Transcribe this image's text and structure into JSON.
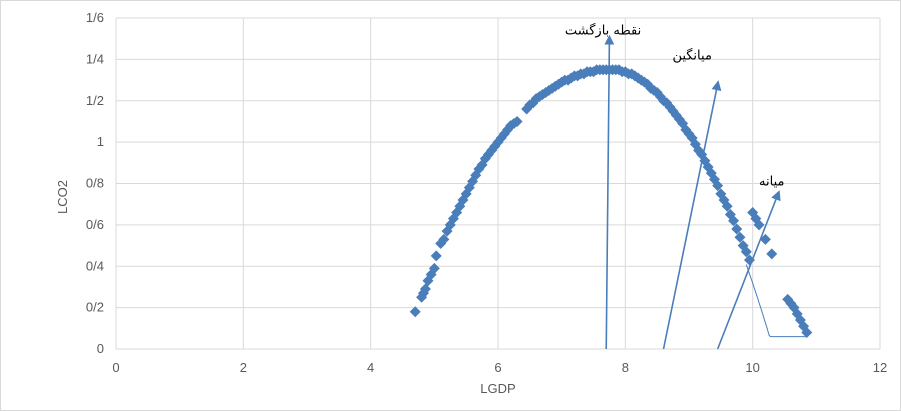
{
  "chart_data": {
    "type": "scatter",
    "title": "",
    "xlabel": "LGDP",
    "ylabel": "LCO2",
    "xlim": [
      0,
      12
    ],
    "ylim": [
      0,
      1.6
    ],
    "x_ticks": [
      0,
      2,
      4,
      6,
      8,
      10,
      12
    ],
    "y_ticks": [
      0,
      0.2,
      0.4,
      0.6,
      0.8,
      1,
      1.2,
      1.4,
      1.6
    ],
    "x_tick_labels": [
      "0",
      "2",
      "4",
      "6",
      "8",
      "10",
      "12"
    ],
    "y_tick_labels": [
      "0",
      "0/2",
      "0/4",
      "0/6",
      "0/8",
      "1",
      "1/2",
      "1/4",
      "1/6"
    ],
    "grid": true,
    "legend": "none",
    "series_color": "#4a7ebb",
    "curve": {
      "peak_x": 7.75,
      "peak_y": 1.35,
      "left_coefficient": 0.1313,
      "right_coefficient": 0.2038
    },
    "points": [
      {
        "x": 4.7,
        "y": 0.18
      },
      {
        "x": 4.8,
        "y": 0.25
      },
      {
        "x": 4.83,
        "y": 0.27
      },
      {
        "x": 4.86,
        "y": 0.29
      },
      {
        "x": 4.9,
        "y": 0.33
      },
      {
        "x": 4.95,
        "y": 0.36
      },
      {
        "x": 5.0,
        "y": 0.39
      },
      {
        "x": 5.03,
        "y": 0.45
      },
      {
        "x": 5.1,
        "y": 0.51
      },
      {
        "x": 5.15,
        "y": 0.53
      },
      {
        "x": 5.2,
        "y": 0.57
      },
      {
        "x": 5.25,
        "y": 0.6
      },
      {
        "x": 5.3,
        "y": 0.63
      },
      {
        "x": 5.35,
        "y": 0.66
      },
      {
        "x": 5.4,
        "y": 0.69
      },
      {
        "x": 5.45,
        "y": 0.72
      },
      {
        "x": 5.5,
        "y": 0.75
      },
      {
        "x": 5.55,
        "y": 0.78
      },
      {
        "x": 5.6,
        "y": 0.81
      },
      {
        "x": 5.65,
        "y": 0.84
      },
      {
        "x": 5.7,
        "y": 0.87
      },
      {
        "x": 5.75,
        "y": 0.89
      },
      {
        "x": 5.8,
        "y": 0.92
      },
      {
        "x": 5.85,
        "y": 0.94
      },
      {
        "x": 5.9,
        "y": 0.96
      },
      {
        "x": 5.95,
        "y": 0.98
      },
      {
        "x": 6.0,
        "y": 1.0
      },
      {
        "x": 6.05,
        "y": 1.02
      },
      {
        "x": 6.1,
        "y": 1.04
      },
      {
        "x": 6.15,
        "y": 1.06
      },
      {
        "x": 6.2,
        "y": 1.08
      },
      {
        "x": 6.25,
        "y": 1.09
      },
      {
        "x": 6.3,
        "y": 1.1
      },
      {
        "x": 6.45,
        "y": 1.16
      },
      {
        "x": 6.5,
        "y": 1.18
      },
      {
        "x": 6.55,
        "y": 1.19
      },
      {
        "x": 6.6,
        "y": 1.21
      },
      {
        "x": 6.65,
        "y": 1.22
      },
      {
        "x": 6.7,
        "y": 1.23
      },
      {
        "x": 6.75,
        "y": 1.24
      },
      {
        "x": 6.8,
        "y": 1.25
      },
      {
        "x": 6.85,
        "y": 1.26
      },
      {
        "x": 6.9,
        "y": 1.27
      },
      {
        "x": 6.95,
        "y": 1.28
      },
      {
        "x": 7.0,
        "y": 1.29
      },
      {
        "x": 7.05,
        "y": 1.3
      },
      {
        "x": 7.1,
        "y": 1.3
      },
      {
        "x": 7.15,
        "y": 1.31
      },
      {
        "x": 7.2,
        "y": 1.32
      },
      {
        "x": 7.25,
        "y": 1.32
      },
      {
        "x": 7.3,
        "y": 1.33
      },
      {
        "x": 7.35,
        "y": 1.33
      },
      {
        "x": 7.4,
        "y": 1.34
      },
      {
        "x": 7.45,
        "y": 1.34
      },
      {
        "x": 7.5,
        "y": 1.34
      },
      {
        "x": 7.55,
        "y": 1.35
      },
      {
        "x": 7.6,
        "y": 1.35
      },
      {
        "x": 7.65,
        "y": 1.35
      },
      {
        "x": 7.7,
        "y": 1.35
      },
      {
        "x": 7.75,
        "y": 1.35
      },
      {
        "x": 7.8,
        "y": 1.35
      },
      {
        "x": 7.85,
        "y": 1.35
      },
      {
        "x": 7.9,
        "y": 1.35
      },
      {
        "x": 7.95,
        "y": 1.34
      },
      {
        "x": 8.0,
        "y": 1.34
      },
      {
        "x": 8.05,
        "y": 1.33
      },
      {
        "x": 8.1,
        "y": 1.33
      },
      {
        "x": 8.15,
        "y": 1.32
      },
      {
        "x": 8.2,
        "y": 1.31
      },
      {
        "x": 8.25,
        "y": 1.3
      },
      {
        "x": 8.3,
        "y": 1.29
      },
      {
        "x": 8.35,
        "y": 1.28
      },
      {
        "x": 8.4,
        "y": 1.26
      },
      {
        "x": 8.45,
        "y": 1.25
      },
      {
        "x": 8.5,
        "y": 1.24
      },
      {
        "x": 8.55,
        "y": 1.22
      },
      {
        "x": 8.6,
        "y": 1.2
      },
      {
        "x": 8.65,
        "y": 1.19
      },
      {
        "x": 8.7,
        "y": 1.17
      },
      {
        "x": 8.75,
        "y": 1.15
      },
      {
        "x": 8.8,
        "y": 1.13
      },
      {
        "x": 8.85,
        "y": 1.11
      },
      {
        "x": 8.9,
        "y": 1.09
      },
      {
        "x": 8.95,
        "y": 1.06
      },
      {
        "x": 9.0,
        "y": 1.04
      },
      {
        "x": 9.05,
        "y": 1.02
      },
      {
        "x": 9.1,
        "y": 0.99
      },
      {
        "x": 9.15,
        "y": 0.96
      },
      {
        "x": 9.2,
        "y": 0.94
      },
      {
        "x": 9.25,
        "y": 0.91
      },
      {
        "x": 9.3,
        "y": 0.88
      },
      {
        "x": 9.35,
        "y": 0.85
      },
      {
        "x": 9.4,
        "y": 0.82
      },
      {
        "x": 9.45,
        "y": 0.79
      },
      {
        "x": 9.5,
        "y": 0.75
      },
      {
        "x": 9.55,
        "y": 0.72
      },
      {
        "x": 9.6,
        "y": 0.69
      },
      {
        "x": 9.65,
        "y": 0.65
      },
      {
        "x": 9.7,
        "y": 0.62
      },
      {
        "x": 9.75,
        "y": 0.58
      },
      {
        "x": 9.8,
        "y": 0.54
      },
      {
        "x": 9.85,
        "y": 0.5
      },
      {
        "x": 9.9,
        "y": 0.47
      },
      {
        "x": 9.95,
        "y": 0.43
      },
      {
        "x": 10.0,
        "y": 0.66
      },
      {
        "x": 10.05,
        "y": 0.63
      },
      {
        "x": 10.1,
        "y": 0.6
      },
      {
        "x": 10.2,
        "y": 0.53
      },
      {
        "x": 10.3,
        "y": 0.46
      },
      {
        "x": 10.55,
        "y": 0.24
      },
      {
        "x": 10.6,
        "y": 0.22
      },
      {
        "x": 10.65,
        "y": 0.2
      },
      {
        "x": 10.7,
        "y": 0.17
      },
      {
        "x": 10.75,
        "y": 0.14
      },
      {
        "x": 10.8,
        "y": 0.11
      },
      {
        "x": 10.85,
        "y": 0.08
      }
    ],
    "annotations": [
      {
        "text": "نقطه بازگشت",
        "from": [
          7.7,
          0.0
        ],
        "to": [
          7.75,
          1.5
        ],
        "label_at": [
          7.65,
          1.52
        ]
      },
      {
        "text": "میانگین",
        "from": [
          8.6,
          0.0
        ],
        "to": [
          9.45,
          1.28
        ],
        "label_at": [
          9.05,
          1.4
        ]
      },
      {
        "text": "میانه",
        "from": [
          9.45,
          0.0
        ],
        "to": [
          10.4,
          0.75
        ],
        "label_at": [
          10.3,
          0.79
        ]
      }
    ]
  }
}
